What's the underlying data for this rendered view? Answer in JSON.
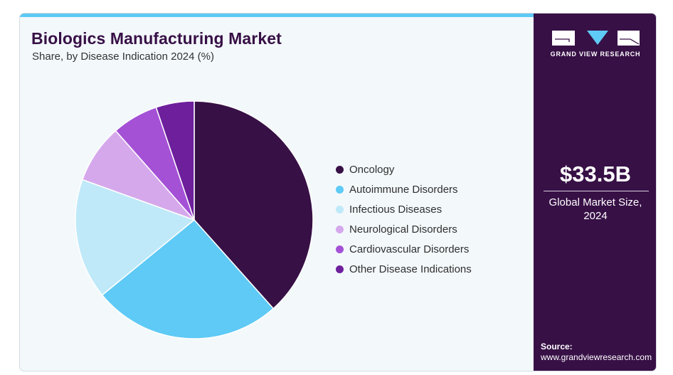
{
  "header": {
    "title": "Biologics Manufacturing Market",
    "subtitle": "Share, by Disease Indication 2024 (%)"
  },
  "side_panel": {
    "brand": "GRAND VIEW RESEARCH",
    "market_size": "$33.5B",
    "market_size_label_line1": "Global Market Size,",
    "market_size_label_line2": "2024",
    "source_label": "Source:",
    "source_url": "www.grandviewresearch.com"
  },
  "colors": {
    "brand_dark": "#371046",
    "accent_blue": "#5dc9f5",
    "background": "#f3f8fb"
  },
  "chart_data": {
    "type": "pie",
    "title": "Biologics Manufacturing Market",
    "subtitle": "Share, by Disease Indication 2024 (%)",
    "legend_position": "right",
    "start_angle": "12 o'clock, clockwise",
    "categories": [
      "Oncology",
      "Autoimmune Disorders",
      "Infectious Diseases",
      "Neurological Disorders",
      "Cardiovascular Disorders",
      "Other Disease Indications"
    ],
    "values": [
      38.4,
      25.7,
      16.4,
      8.0,
      6.3,
      5.2
    ],
    "colors": [
      "#371046",
      "#5ecaf5",
      "#bfe9f9",
      "#d5a8ec",
      "#a451d6",
      "#6d1f9c"
    ],
    "unit": "%"
  }
}
